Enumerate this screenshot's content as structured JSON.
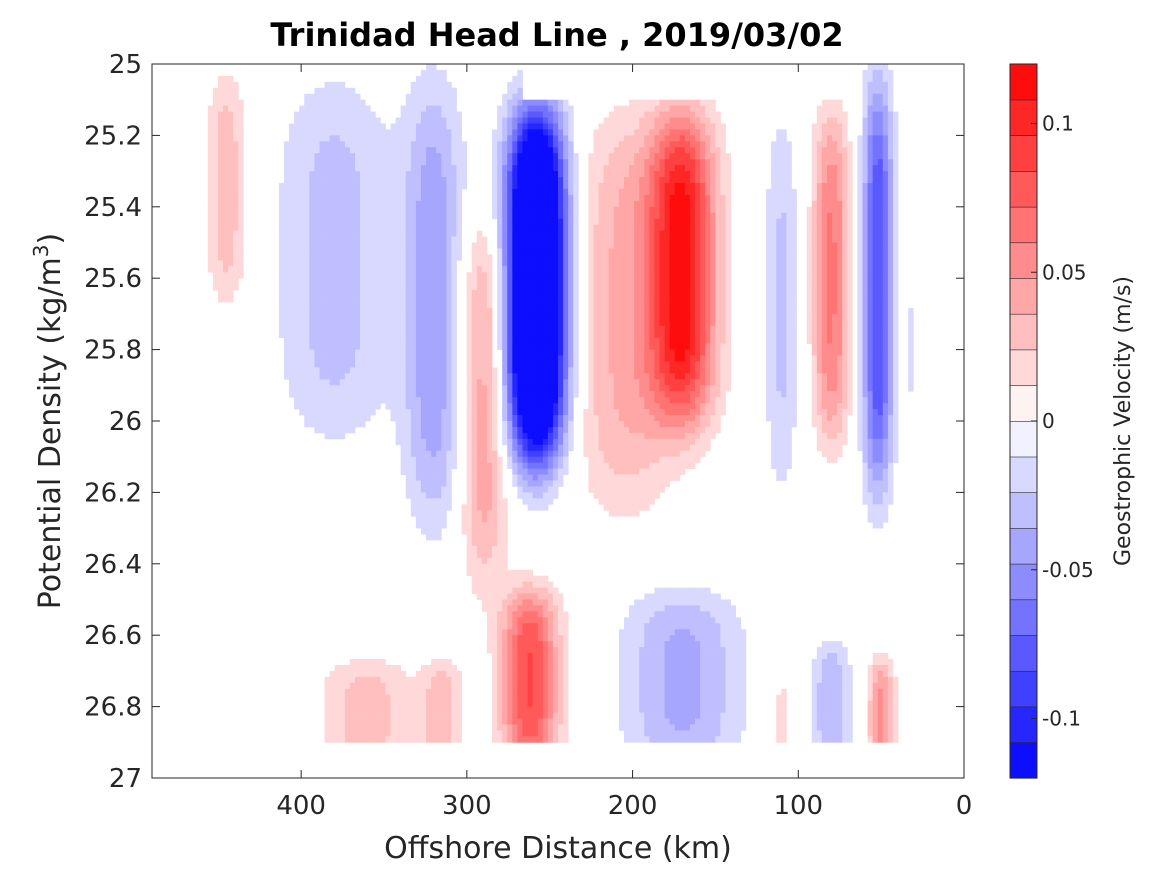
{
  "chart_data": {
    "type": "contour",
    "title": "Trinidad Head Line , 2019/03/02",
    "xlabel": "Offshore Distance (km)",
    "ylabel": "Potential Density (kg/m",
    "ylabel_sup": "3",
    "ylabel_close": ")",
    "xlim": [
      490,
      0
    ],
    "ylim": [
      25,
      27
    ],
    "x_reversed": true,
    "y_reversed": true,
    "x_ticks": [
      400,
      300,
      200,
      100,
      0
    ],
    "y_ticks": [
      25,
      25.2,
      25.4,
      25.6,
      25.8,
      26,
      26.2,
      26.4,
      26.6,
      26.8,
      27
    ],
    "colorbar": {
      "label": "Geostrophic Velocity (m/s)",
      "range": [
        -0.12,
        0.12
      ],
      "levels": 20,
      "ticks": [
        -0.1,
        -0.05,
        0,
        0.05,
        0.1
      ],
      "tick_labels": [
        "-0.1",
        "-0.05",
        "0",
        "0.05",
        "0.1"
      ],
      "colors": {
        "negative": "#0000ff",
        "zero": "#ffffff",
        "positive": "#ff0000"
      }
    },
    "data_grid": {
      "note": "",
      "x": [
        490,
        460,
        440,
        420,
        400,
        380,
        360,
        340,
        320,
        300,
        290,
        280,
        270,
        260,
        250,
        240,
        230,
        220,
        200,
        180,
        170,
        160,
        150,
        140,
        120,
        100,
        90,
        80,
        70,
        60,
        50,
        40,
        30
      ],
      "y": [
        25.0,
        25.1,
        25.2,
        25.3,
        25.4,
        25.5,
        25.6,
        25.7,
        25.8,
        25.9,
        26.0,
        26.1,
        26.2,
        26.3,
        26.4,
        26.5,
        26.6,
        26.7,
        26.8,
        26.9
      ]
    }
  }
}
